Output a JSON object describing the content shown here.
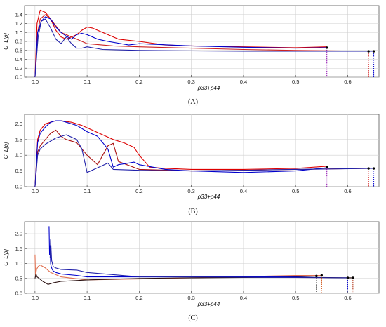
{
  "chart_data": [
    {
      "type": "line",
      "panel_label": "(A)",
      "xlabel": "ρ33+ρ44",
      "ylabel": "C_L[ρ]",
      "xlim": [
        -0.02,
        0.66
      ],
      "ylim": [
        0.0,
        1.6
      ],
      "xticks": [
        0.0,
        0.1,
        0.2,
        0.3,
        0.4,
        0.5,
        0.6
      ],
      "yticks": [
        0.0,
        0.2,
        0.4,
        0.6,
        0.8,
        1.0,
        1.2,
        1.4
      ],
      "grid": true,
      "series": [
        {
          "color": "#dd0000",
          "x": [
            0.0,
            0.004,
            0.01,
            0.02,
            0.03,
            0.04,
            0.05,
            0.06,
            0.07,
            0.08,
            0.09,
            0.1,
            0.11,
            0.13,
            0.16,
            0.2,
            0.25,
            0.3,
            0.4,
            0.5,
            0.56
          ],
          "y": [
            0.0,
            1.2,
            1.5,
            1.45,
            1.3,
            1.05,
            0.9,
            0.85,
            0.9,
            0.95,
            1.05,
            1.12,
            1.1,
            1.0,
            0.85,
            0.8,
            0.72,
            0.7,
            0.68,
            0.66,
            0.68
          ]
        },
        {
          "color": "#cc2222",
          "x": [
            0.0,
            0.005,
            0.01,
            0.02,
            0.03,
            0.04,
            0.05,
            0.06,
            0.08,
            0.1,
            0.15,
            0.2,
            0.3,
            0.4,
            0.5,
            0.64
          ],
          "y": [
            0.0,
            1.0,
            1.3,
            1.4,
            1.3,
            1.15,
            1.0,
            0.95,
            0.85,
            0.75,
            0.7,
            0.68,
            0.65,
            0.62,
            0.6,
            0.58
          ]
        },
        {
          "color": "#0000cc",
          "x": [
            0.0,
            0.005,
            0.012,
            0.02,
            0.03,
            0.04,
            0.05,
            0.06,
            0.07,
            0.08,
            0.09,
            0.1,
            0.12,
            0.14,
            0.18,
            0.2,
            0.3,
            0.4,
            0.5,
            0.56
          ],
          "y": [
            0.0,
            1.0,
            1.25,
            1.35,
            1.3,
            1.12,
            1.0,
            0.92,
            0.85,
            0.95,
            0.98,
            0.95,
            0.85,
            0.8,
            0.72,
            0.75,
            0.7,
            0.67,
            0.65,
            0.66
          ]
        },
        {
          "color": "#2222aa",
          "x": [
            0.0,
            0.006,
            0.012,
            0.02,
            0.03,
            0.04,
            0.05,
            0.06,
            0.07,
            0.08,
            0.09,
            0.1,
            0.13,
            0.2,
            0.3,
            0.4,
            0.5,
            0.65
          ],
          "y": [
            0.0,
            0.9,
            1.25,
            1.3,
            1.1,
            0.85,
            0.75,
            0.9,
            0.75,
            0.65,
            0.65,
            0.68,
            0.62,
            0.6,
            0.59,
            0.58,
            0.58,
            0.58
          ]
        }
      ],
      "endpoints": [
        {
          "x": 0.56,
          "y": 0.66,
          "color": "#8800aa"
        },
        {
          "x": 0.64,
          "y": 0.58,
          "color": "#cc0000"
        },
        {
          "x": 0.65,
          "y": 0.58,
          "color": "#0000cc"
        }
      ]
    },
    {
      "type": "line",
      "panel_label": "(B)",
      "xlabel": "ρ33+ρ44",
      "ylabel": "C_L[ρ]",
      "xlim": [
        -0.02,
        0.66
      ],
      "ylim": [
        0.0,
        2.3
      ],
      "xticks": [
        0.0,
        0.1,
        0.2,
        0.3,
        0.4,
        0.5,
        0.6
      ],
      "yticks": [
        0.0,
        0.5,
        1.0,
        1.5,
        2.0
      ],
      "grid": true,
      "series": [
        {
          "color": "#dd0000",
          "x": [
            0.0,
            0.005,
            0.01,
            0.02,
            0.03,
            0.04,
            0.05,
            0.07,
            0.09,
            0.11,
            0.13,
            0.15,
            0.17,
            0.19,
            0.2,
            0.22,
            0.25,
            0.3,
            0.4,
            0.5,
            0.56
          ],
          "y": [
            0.0,
            1.5,
            1.8,
            2.0,
            2.05,
            2.1,
            2.1,
            2.05,
            1.95,
            1.8,
            1.65,
            1.5,
            1.4,
            1.25,
            1.0,
            0.62,
            0.58,
            0.55,
            0.55,
            0.58,
            0.65
          ]
        },
        {
          "color": "#aa1111",
          "x": [
            0.0,
            0.005,
            0.01,
            0.02,
            0.03,
            0.04,
            0.05,
            0.06,
            0.08,
            0.1,
            0.11,
            0.12,
            0.13,
            0.14,
            0.15,
            0.16,
            0.2,
            0.3,
            0.4,
            0.5,
            0.64
          ],
          "y": [
            0.0,
            1.1,
            1.3,
            1.5,
            1.7,
            1.8,
            1.6,
            1.5,
            1.4,
            1.0,
            0.85,
            0.7,
            1.0,
            1.3,
            1.38,
            0.8,
            0.55,
            0.5,
            0.52,
            0.55,
            0.58
          ]
        },
        {
          "color": "#0000cc",
          "x": [
            0.0,
            0.005,
            0.01,
            0.02,
            0.03,
            0.04,
            0.05,
            0.06,
            0.08,
            0.1,
            0.12,
            0.14,
            0.15,
            0.16,
            0.18,
            0.19,
            0.2,
            0.25,
            0.3,
            0.4,
            0.5,
            0.56
          ],
          "y": [
            0.0,
            1.4,
            1.7,
            1.9,
            2.05,
            2.1,
            2.1,
            2.05,
            1.95,
            1.75,
            1.6,
            1.2,
            0.62,
            0.7,
            0.75,
            0.78,
            0.7,
            0.55,
            0.5,
            0.45,
            0.5,
            0.6
          ]
        },
        {
          "color": "#2222aa",
          "x": [
            0.0,
            0.005,
            0.01,
            0.02,
            0.04,
            0.06,
            0.08,
            0.09,
            0.1,
            0.12,
            0.14,
            0.15,
            0.2,
            0.3,
            0.4,
            0.5,
            0.65
          ],
          "y": [
            0.0,
            1.0,
            1.2,
            1.35,
            1.55,
            1.65,
            1.5,
            1.2,
            0.45,
            0.6,
            0.75,
            0.55,
            0.52,
            0.5,
            0.52,
            0.55,
            0.58
          ]
        }
      ],
      "endpoints": [
        {
          "x": 0.56,
          "y": 0.63,
          "color": "#8800aa"
        },
        {
          "x": 0.64,
          "y": 0.58,
          "color": "#cc0000"
        },
        {
          "x": 0.65,
          "y": 0.58,
          "color": "#0000cc"
        }
      ]
    },
    {
      "type": "line",
      "panel_label": "(C)",
      "xlabel": "ρ33+ρ44",
      "ylabel": "C_L[ρ]",
      "xlim": [
        -0.02,
        0.66
      ],
      "ylim": [
        0.0,
        2.4
      ],
      "xticks": [
        0.0,
        0.1,
        0.2,
        0.3,
        0.4,
        0.5,
        0.6
      ],
      "yticks": [
        0.0,
        0.5,
        1.0,
        1.5,
        2.0
      ],
      "grid": true,
      "series": [
        {
          "color": "#e07050",
          "x": [
            0.0,
            0.001,
            0.003,
            0.006,
            0.01,
            0.02,
            0.03,
            0.05,
            0.1,
            0.2,
            0.3,
            0.4,
            0.5,
            0.55
          ],
          "y": [
            1.3,
            0.6,
            0.8,
            0.9,
            0.95,
            0.85,
            0.7,
            0.55,
            0.45,
            0.48,
            0.52,
            0.56,
            0.6,
            0.6
          ]
        },
        {
          "color": "#2a1010",
          "x": [
            0.0,
            0.002,
            0.004,
            0.008,
            0.015,
            0.025,
            0.035,
            0.05,
            0.1,
            0.2,
            0.3,
            0.4,
            0.5,
            0.61
          ],
          "y": [
            0.5,
            0.65,
            0.55,
            0.5,
            0.4,
            0.3,
            0.35,
            0.4,
            0.45,
            0.5,
            0.52,
            0.53,
            0.54,
            0.52
          ]
        },
        {
          "color": "#0000cc",
          "x": [
            0.027,
            0.028,
            0.029,
            0.03,
            0.031,
            0.033,
            0.035,
            0.04,
            0.05,
            0.08,
            0.1,
            0.2,
            0.3,
            0.4,
            0.5,
            0.54
          ],
          "y": [
            2.25,
            1.3,
            1.6,
            1.0,
            0.9,
            0.8,
            0.75,
            0.7,
            0.65,
            0.6,
            0.55,
            0.55,
            0.55,
            0.55,
            0.56,
            0.58
          ]
        },
        {
          "color": "#2222aa",
          "x": [
            0.029,
            0.03,
            0.032,
            0.035,
            0.04,
            0.05,
            0.08,
            0.1,
            0.2,
            0.3,
            0.4,
            0.5,
            0.6
          ],
          "y": [
            1.2,
            1.8,
            1.1,
            0.9,
            0.85,
            0.8,
            0.78,
            0.7,
            0.55,
            0.55,
            0.54,
            0.53,
            0.52
          ]
        }
      ],
      "endpoints": [
        {
          "x": 0.54,
          "y": 0.58,
          "color": "#000000"
        },
        {
          "x": 0.55,
          "y": 0.6,
          "color": "#cc4400"
        },
        {
          "x": 0.6,
          "y": 0.52,
          "color": "#0000cc"
        },
        {
          "x": 0.61,
          "y": 0.52,
          "color": "#aa2200"
        }
      ]
    }
  ]
}
